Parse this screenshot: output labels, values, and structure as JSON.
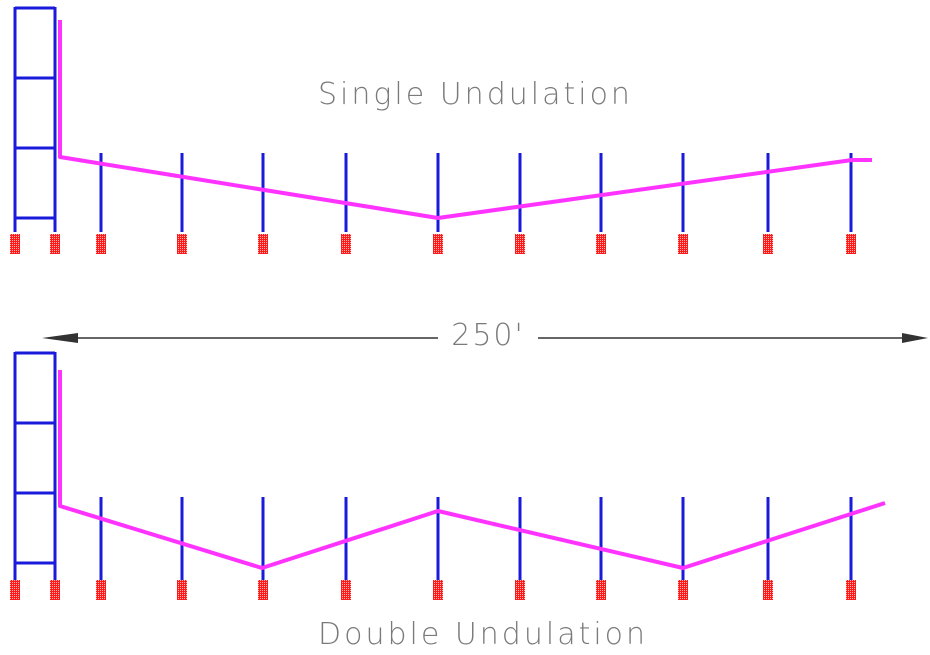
{
  "title_single": "Single Undulation",
  "title_double": "Double Undulation",
  "dimension_label": "250'",
  "colors": {
    "tower": "#1a1adb",
    "post": "#1a1adb",
    "pipe": "#ff33ff",
    "footing": "#ff1a1a",
    "footing_hatch": "#ffb3b3",
    "dimension": "#333333",
    "text": "#7a7a7a"
  }
}
